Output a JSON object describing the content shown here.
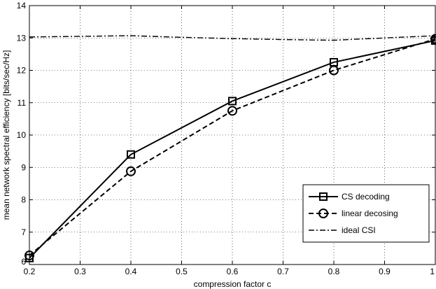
{
  "chart_data": {
    "type": "line",
    "xlabel": "compression factor c",
    "ylabel": "mean network spectral efficiency [bits/sec/Hz]",
    "xlim": [
      0.2,
      1
    ],
    "ylim": [
      6,
      14
    ],
    "x_ticks": [
      "0.2",
      "0.3",
      "0.4",
      "0.5",
      "0.6",
      "0.7",
      "0.8",
      "0.9",
      "1"
    ],
    "y_ticks": [
      "6",
      "7",
      "8",
      "9",
      "10",
      "11",
      "12",
      "13",
      "14"
    ],
    "grid": true,
    "legend_position": "bottom-right",
    "series": [
      {
        "name": "CS decoding",
        "line_style": "solid",
        "marker": "square",
        "x": [
          0.2,
          0.4,
          0.6,
          0.8,
          1.0
        ],
        "y": [
          6.2,
          9.4,
          11.05,
          12.25,
          12.92
        ]
      },
      {
        "name": "linear decosing",
        "line_style": "dashed",
        "marker": "circle",
        "x": [
          0.2,
          0.4,
          0.6,
          0.8,
          1.0
        ],
        "y": [
          6.28,
          8.88,
          10.75,
          12.0,
          12.97
        ]
      },
      {
        "name": "ideal CSI",
        "line_style": "dashdot",
        "marker": "none",
        "x": [
          0.2,
          0.3,
          0.4,
          0.5,
          0.6,
          0.7,
          0.8,
          0.9,
          1.0
        ],
        "y": [
          13.03,
          13.05,
          13.07,
          13.02,
          12.98,
          12.95,
          12.93,
          13.0,
          13.07
        ]
      }
    ]
  }
}
